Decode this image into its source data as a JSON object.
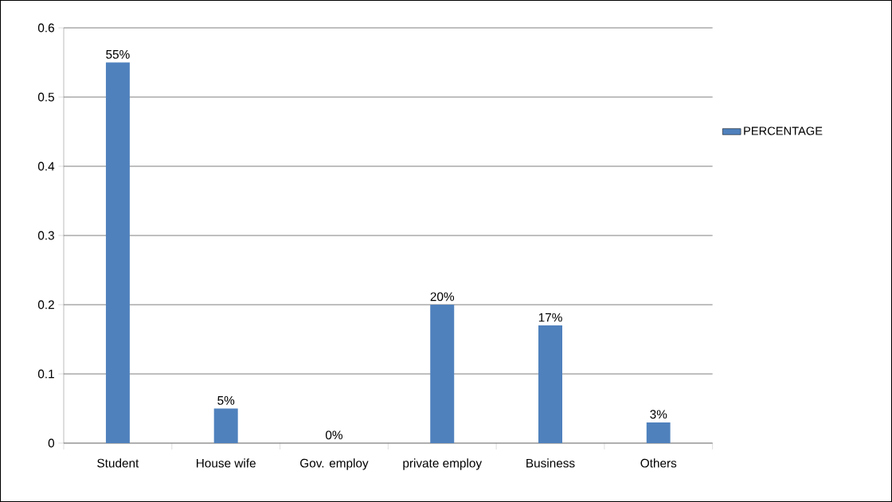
{
  "chart_data": {
    "type": "bar",
    "categories": [
      "Student",
      "House wife",
      "Gov. employ",
      "private employ",
      "Business",
      "Others"
    ],
    "series": [
      {
        "name": "PERCENTAGE",
        "color": "#4f81bd",
        "values": [
          0.55,
          0.05,
          0,
          0.2,
          0.17,
          0.03
        ],
        "value_labels": [
          "55%",
          "5%",
          "0%",
          "20%",
          "17%",
          "3%"
        ]
      }
    ],
    "ylim": [
      0,
      0.6
    ],
    "yticks": [
      0,
      0.1,
      0.2,
      0.3,
      0.4,
      0.5,
      0.6
    ],
    "grid": "y",
    "legend": "right"
  }
}
